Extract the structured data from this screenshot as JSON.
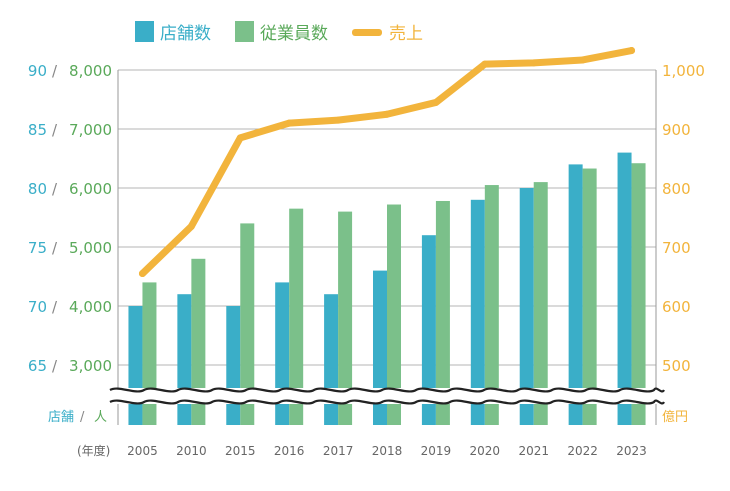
{
  "legend": {
    "items": [
      {
        "label": "店舗数",
        "color": "#3aaec8"
      },
      {
        "label": "従業員数",
        "color": "#7bc08a"
      },
      {
        "label": "売上",
        "color": "#f2b43c"
      }
    ]
  },
  "axes": {
    "left_unit_stores": "店舗",
    "left_unit_sep": "/",
    "left_unit_people": "人",
    "right_unit": "億円",
    "x_prefix": "(年度)",
    "left_ticks": [
      {
        "stores": "90",
        "people": "8,000"
      },
      {
        "stores": "85",
        "people": "7,000"
      },
      {
        "stores": "80",
        "people": "6,000"
      },
      {
        "stores": "75",
        "people": "5,000"
      },
      {
        "stores": "70",
        "people": "4,000"
      },
      {
        "stores": "65",
        "people": "3,000"
      }
    ],
    "right_ticks": [
      "1,000",
      "900",
      "800",
      "700",
      "600",
      "500"
    ]
  },
  "colors": {
    "stores": "#3aaec8",
    "employees": "#7bc08a",
    "sales": "#f2b43c",
    "grid": "#b5b5b5",
    "people_tick": "#5aa95a",
    "axis_text": "#666666"
  },
  "chart_data": {
    "type": "bar",
    "categories": [
      "2005",
      "2010",
      "2015",
      "2016",
      "2017",
      "2018",
      "2019",
      "2020",
      "2021",
      "2022",
      "2023"
    ],
    "series": [
      {
        "name": "店舗数",
        "type": "bar",
        "axis": "left-stores",
        "values": [
          70,
          71,
          70,
          72,
          71,
          73,
          76,
          79,
          80,
          82,
          83
        ]
      },
      {
        "name": "従業員数",
        "type": "bar",
        "axis": "left-people",
        "values": [
          4400,
          4800,
          5400,
          5650,
          5600,
          5720,
          5780,
          6050,
          6100,
          6330,
          6420
        ]
      },
      {
        "name": "売上",
        "type": "line",
        "axis": "right",
        "values": [
          655,
          735,
          885,
          910,
          915,
          925,
          945,
          1010,
          1012,
          1017,
          1033
        ]
      }
    ],
    "ylim_stores": [
      65,
      90
    ],
    "ylim_people": [
      3000,
      8000
    ],
    "ylim_sales": [
      500,
      1000
    ],
    "axis_break": true,
    "grid": true,
    "legend_position": "top"
  }
}
